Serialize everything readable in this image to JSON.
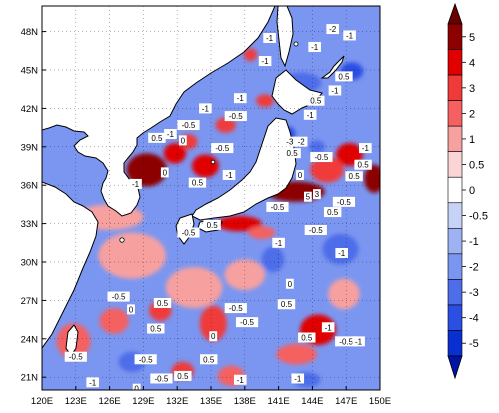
{
  "map": {
    "lat_ticks": [
      "48N",
      "45N",
      "42N",
      "39N",
      "36N",
      "33N",
      "30N",
      "27N",
      "24N",
      "21N"
    ],
    "lat_values": [
      48,
      45,
      42,
      39,
      36,
      33,
      30,
      27,
      24,
      21
    ],
    "lon_ticks": [
      "120E",
      "123E",
      "126E",
      "129E",
      "132E",
      "135E",
      "138E",
      "141E",
      "144E",
      "147E",
      "150E"
    ],
    "lon_values": [
      120,
      123,
      126,
      129,
      132,
      135,
      138,
      141,
      144,
      147,
      150
    ],
    "lat_range": [
      20,
      50
    ],
    "lon_range": [
      120,
      150
    ],
    "ocean_base_color": "#7b96f0",
    "land_color": "#ffffff",
    "coast_color": "#000000",
    "grid_style": "dotted"
  },
  "colorbar": {
    "labels": [
      "5",
      "4",
      "3",
      "2",
      "1",
      "0.5",
      "0",
      "-0.5",
      "-1",
      "-2",
      "-3",
      "-4",
      "-5"
    ],
    "colors": [
      "#8c0000",
      "#e00000",
      "#f03a3a",
      "#f56060",
      "#f7a0a0",
      "#fbd5d5",
      "#ffffff",
      "#c6d3f7",
      "#9db2f2",
      "#7b96f0",
      "#4d6de9",
      "#2b4ee3",
      "#0a2fd0"
    ],
    "top_arrow_color": "#6b0000",
    "bottom_arrow_color": "#0014a8"
  },
  "contour_labels": [
    {
      "t": "-1",
      "lon": 147.3,
      "lat": 47.7
    },
    {
      "t": "-2",
      "lon": 145.8,
      "lat": 48.2
    },
    {
      "t": "-1",
      "lon": 144.2,
      "lat": 46.8
    },
    {
      "t": "0.5",
      "lon": 146.8,
      "lat": 44.5
    },
    {
      "t": "-1",
      "lon": 146.0,
      "lat": 43.4
    },
    {
      "t": "-1",
      "lon": 140.2,
      "lat": 47.5
    },
    {
      "t": "-1",
      "lon": 139.8,
      "lat": 45.7
    },
    {
      "t": "-1",
      "lon": 143.8,
      "lat": 41.5
    },
    {
      "t": "0.5",
      "lon": 144.3,
      "lat": 42.6
    },
    {
      "t": "-1",
      "lon": 137.6,
      "lat": 42.8
    },
    {
      "t": "-1",
      "lon": 134.5,
      "lat": 42.0
    },
    {
      "t": "-0.5",
      "lon": 137.2,
      "lat": 41.4
    },
    {
      "t": "-0.5",
      "lon": 133.0,
      "lat": 40.7
    },
    {
      "t": "-1",
      "lon": 131.4,
      "lat": 40.0
    },
    {
      "t": "0.5",
      "lon": 130.2,
      "lat": 39.7
    },
    {
      "t": "0",
      "lon": 132.5,
      "lat": 39.5
    },
    {
      "t": "-0.5",
      "lon": 136.0,
      "lat": 38.9
    },
    {
      "t": "-3",
      "lon": 142.0,
      "lat": 39.4
    },
    {
      "t": "-2",
      "lon": 143.0,
      "lat": 39.4
    },
    {
      "t": "0.5",
      "lon": 142.2,
      "lat": 38.5
    },
    {
      "t": "-0.5",
      "lon": 144.8,
      "lat": 38.2
    },
    {
      "t": "-1",
      "lon": 148.7,
      "lat": 38.9
    },
    {
      "t": "0.5",
      "lon": 148.5,
      "lat": 37.6
    },
    {
      "t": "0.5",
      "lon": 147.7,
      "lat": 36.7
    },
    {
      "t": "-1",
      "lon": 136.6,
      "lat": 36.8
    },
    {
      "t": "-1",
      "lon": 128.3,
      "lat": 36.1
    },
    {
      "t": "0",
      "lon": 130.9,
      "lat": 37.0
    },
    {
      "t": "0.5",
      "lon": 133.8,
      "lat": 36.2
    },
    {
      "t": "0",
      "lon": 142.9,
      "lat": 36.8
    },
    {
      "t": "5",
      "lon": 143.6,
      "lat": 35.1
    },
    {
      "t": "3",
      "lon": 144.4,
      "lat": 35.3
    },
    {
      "t": "-0.5",
      "lon": 140.9,
      "lat": 34.3
    },
    {
      "t": "-0.5",
      "lon": 146.8,
      "lat": 34.7
    },
    {
      "t": "0.5",
      "lon": 145.8,
      "lat": 33.9
    },
    {
      "t": "0.5",
      "lon": 135.1,
      "lat": 32.9
    },
    {
      "t": "-0.5",
      "lon": 133.0,
      "lat": 32.3
    },
    {
      "t": "-0.5",
      "lon": 144.3,
      "lat": 32.5
    },
    {
      "t": "-1",
      "lon": 141.0,
      "lat": 31.5
    },
    {
      "t": "-1",
      "lon": 146.6,
      "lat": 30.7
    },
    {
      "t": "0",
      "lon": 142.0,
      "lat": 28.3
    },
    {
      "t": "-0.5",
      "lon": 126.8,
      "lat": 27.3
    },
    {
      "t": "0.5",
      "lon": 130.7,
      "lat": 26.8
    },
    {
      "t": "0",
      "lon": 127.9,
      "lat": 26.3
    },
    {
      "t": "-0.5",
      "lon": 137.2,
      "lat": 26.4
    },
    {
      "t": "0.5",
      "lon": 141.7,
      "lat": 26.7
    },
    {
      "t": "-0.5",
      "lon": 138.2,
      "lat": 25.3
    },
    {
      "t": "0.5",
      "lon": 130.1,
      "lat": 24.8
    },
    {
      "t": "0",
      "lon": 135.2,
      "lat": 24.2
    },
    {
      "t": "-1",
      "lon": 145.4,
      "lat": 24.9
    },
    {
      "t": "-0.5",
      "lon": 147.0,
      "lat": 23.8
    },
    {
      "t": "-1",
      "lon": 148.1,
      "lat": 23.8
    },
    {
      "t": "0.5",
      "lon": 143.5,
      "lat": 24.1
    },
    {
      "t": "-0.5",
      "lon": 123.0,
      "lat": 22.6
    },
    {
      "t": "-0.5",
      "lon": 129.2,
      "lat": 22.4
    },
    {
      "t": "0.5",
      "lon": 134.8,
      "lat": 22.4
    },
    {
      "t": "-0.5",
      "lon": 130.6,
      "lat": 20.9
    },
    {
      "t": "-1",
      "lon": 137.6,
      "lat": 20.8
    },
    {
      "t": "-1",
      "lon": 124.5,
      "lat": 20.6
    },
    {
      "t": "0",
      "lon": 128.4,
      "lat": 20.1
    },
    {
      "t": "0.5",
      "lon": 132.5,
      "lat": 21.1
    },
    {
      "t": "-1",
      "lon": 142.7,
      "lat": 20.9
    }
  ],
  "anomaly_patches": [
    {
      "lon": 129.3,
      "lat": 37.2,
      "rx": 1.8,
      "ry": 1.3,
      "v": 4
    },
    {
      "lon": 131.8,
      "lat": 38.5,
      "rx": 1.0,
      "ry": 0.8,
      "v": 3
    },
    {
      "lon": 134.5,
      "lat": 37.5,
      "rx": 1.2,
      "ry": 0.9,
      "v": 3
    },
    {
      "lon": 133.0,
      "lat": 39.4,
      "rx": 0.8,
      "ry": 0.6,
      "v": 2
    },
    {
      "lon": 136.3,
      "lat": 40.7,
      "rx": 0.9,
      "ry": 0.6,
      "v": 2
    },
    {
      "lon": 139.8,
      "lat": 42.6,
      "rx": 0.8,
      "ry": 0.5,
      "v": 2
    },
    {
      "lon": 138.5,
      "lat": 46.2,
      "rx": 0.6,
      "ry": 0.5,
      "v": 2
    },
    {
      "lon": 142.5,
      "lat": 35.5,
      "rx": 2.6,
      "ry": 0.8,
      "v": 5
    },
    {
      "lon": 147.3,
      "lat": 38.4,
      "rx": 1.2,
      "ry": 0.9,
      "v": 3
    },
    {
      "lon": 149.5,
      "lat": 36.5,
      "rx": 0.9,
      "ry": 1.1,
      "v": 4
    },
    {
      "lon": 145.3,
      "lat": 37.2,
      "rx": 1.5,
      "ry": 1.0,
      "v": 2
    },
    {
      "lon": 137.5,
      "lat": 33.0,
      "rx": 2.0,
      "ry": 0.6,
      "v": 3
    },
    {
      "lon": 139.5,
      "lat": 32.3,
      "rx": 1.2,
      "ry": 0.5,
      "v": 1
    },
    {
      "lon": 141.8,
      "lat": 40.0,
      "rx": 0.7,
      "ry": 0.6,
      "v": -3
    },
    {
      "lon": 144.4,
      "lat": 39.0,
      "rx": 0.7,
      "ry": 0.5,
      "v": -2
    },
    {
      "lon": 143.0,
      "lat": 44.0,
      "rx": 1.8,
      "ry": 0.8,
      "v": -2
    },
    {
      "lon": 147.5,
      "lat": 44.9,
      "rx": 1.0,
      "ry": 0.7,
      "v": -3
    },
    {
      "lon": 144.5,
      "lat": 24.7,
      "rx": 1.6,
      "ry": 1.2,
      "v": 3
    },
    {
      "lon": 142.6,
      "lat": 22.8,
      "rx": 1.8,
      "ry": 0.8,
      "v": 1
    },
    {
      "lon": 135.2,
      "lat": 25.2,
      "rx": 1.2,
      "ry": 1.4,
      "v": 2
    },
    {
      "lon": 136.8,
      "lat": 21.1,
      "rx": 1.2,
      "ry": 0.8,
      "v": 1
    },
    {
      "lon": 130.5,
      "lat": 26.2,
      "rx": 1.0,
      "ry": 0.8,
      "v": 2
    },
    {
      "lon": 132.5,
      "lat": 21.5,
      "rx": 1.0,
      "ry": 0.7,
      "v": 2
    },
    {
      "lon": 126.4,
      "lat": 25.4,
      "rx": 1.3,
      "ry": 1.0,
      "v": 1
    },
    {
      "lon": 122.8,
      "lat": 23.8,
      "rx": 1.5,
      "ry": 1.4,
      "v": 1
    },
    {
      "lon": 133.5,
      "lat": 28.0,
      "rx": 2.5,
      "ry": 1.6,
      "v": 0.5
    },
    {
      "lon": 138.0,
      "lat": 29.0,
      "rx": 1.8,
      "ry": 1.2,
      "v": 0.5
    },
    {
      "lon": 128.0,
      "lat": 30.5,
      "rx": 3.0,
      "ry": 1.8,
      "v": 0.5
    },
    {
      "lon": 126.0,
      "lat": 33.5,
      "rx": 3.0,
      "ry": 1.0,
      "v": 0.5
    },
    {
      "lon": 146.8,
      "lat": 27.5,
      "rx": 1.4,
      "ry": 1.2,
      "v": 0.5
    },
    {
      "lon": 140.5,
      "lat": 30.2,
      "rx": 1.0,
      "ry": 1.0,
      "v": -2
    },
    {
      "lon": 146.5,
      "lat": 31.0,
      "rx": 1.6,
      "ry": 1.2,
      "v": -2
    },
    {
      "lon": 128.0,
      "lat": 22.2,
      "rx": 1.2,
      "ry": 0.8,
      "v": -2
    },
    {
      "lon": 143.5,
      "lat": 20.8,
      "rx": 1.2,
      "ry": 0.6,
      "v": -2
    }
  ]
}
